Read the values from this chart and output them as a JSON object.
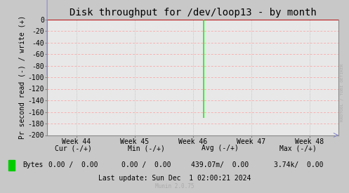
{
  "title": "Disk throughput for /dev/loop13 - by month",
  "ylabel": "Pr second read (-) / write (+)",
  "ylim": [
    -200,
    0
  ],
  "yticks": [
    0,
    -20,
    -40,
    -60,
    -80,
    -100,
    -120,
    -140,
    -160,
    -180,
    -200
  ],
  "xlim": [
    0,
    5
  ],
  "xtick_positions": [
    0.5,
    1.5,
    2.5,
    3.5,
    4.5
  ],
  "xtick_labels": [
    "Week 44",
    "Week 45",
    "Week 46",
    "Week 47",
    "Week 48"
  ],
  "bg_color": "#c8c8c8",
  "plot_bg_color": "#e8e8e8",
  "grid_h_color": "#ff9999",
  "spike_x": 2.68,
  "spike_y_bottom": -170,
  "spike_color": "#00ff00",
  "line_zero_color": "#cc0000",
  "legend_label": "Bytes",
  "legend_color": "#00cc00",
  "last_update": "Last update: Sun Dec  1 02:00:21 2024",
  "munin_text": "Munin 2.0.75",
  "rrdtool_text": "RRDTOOL / TOBI OETIKER",
  "title_fontsize": 10,
  "axis_fontsize": 7,
  "tick_fontsize": 7,
  "stats_fontsize": 7
}
